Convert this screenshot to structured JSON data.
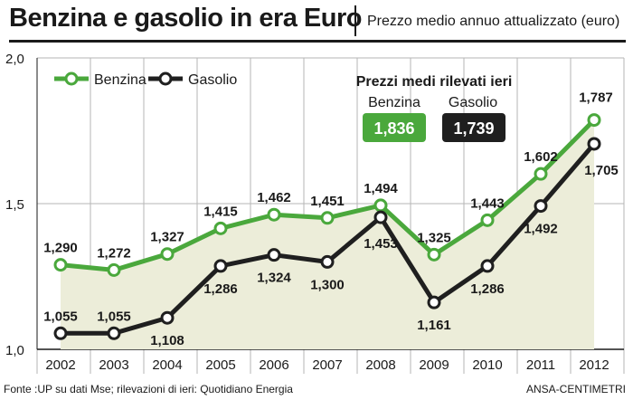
{
  "header": {
    "title": "Benzina e gasolio in era Euro",
    "subtitle": "Prezzo medio annuo attualizzato (euro)"
  },
  "colors": {
    "benzina": "#4aa83c",
    "gasolio": "#1f1f1f",
    "fill": "#ecedd9",
    "grid": "#b5b5b5"
  },
  "chart_data": {
    "type": "line",
    "categories": [
      "2002",
      "2003",
      "2004",
      "2005",
      "2006",
      "2007",
      "2008",
      "2009",
      "2010",
      "2011",
      "2012"
    ],
    "ylim": [
      1.0,
      2.0
    ],
    "yticks": [
      "1,0",
      "1,5",
      "2,0"
    ],
    "series": [
      {
        "name": "Benzina",
        "values": [
          1.29,
          1.272,
          1.327,
          1.415,
          1.462,
          1.451,
          1.494,
          1.325,
          1.443,
          1.602,
          1.787
        ],
        "labels": [
          "1,290",
          "1,272",
          "1,327",
          "1,415",
          "1,462",
          "1,451",
          "1,494",
          "1,325",
          "1,443",
          "1,602",
          "1,787"
        ]
      },
      {
        "name": "Gasolio",
        "values": [
          1.055,
          1.055,
          1.108,
          1.286,
          1.324,
          1.3,
          1.453,
          1.161,
          1.286,
          1.492,
          1.705
        ],
        "labels": [
          "1,055",
          "1,055",
          "1,108",
          "1,286",
          "1,324",
          "1,300",
          "1,453",
          "1,161",
          "1,286",
          "1,492",
          "1,705"
        ]
      }
    ],
    "inset": {
      "title": "Prezzi medi rilevati ieri",
      "benzina_label": "Benzina",
      "benzina_value": "1,836",
      "gasolio_label": "Gasolio",
      "gasolio_value": "1,739"
    },
    "legend": "top-left",
    "grid": true
  },
  "footer": {
    "source": "Fonte :UP su dati Mse; rilevazioni di ieri: Quotidiano Energia",
    "credit": "ANSA-CENTIMETRI"
  }
}
